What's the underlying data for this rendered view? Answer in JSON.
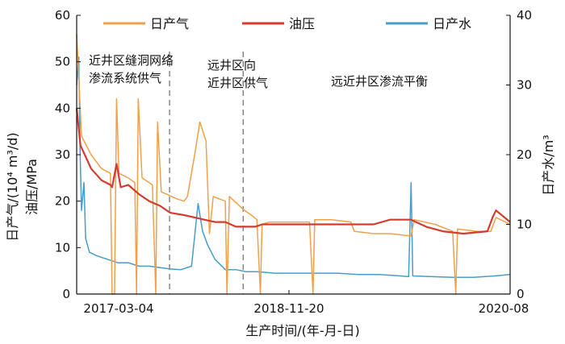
{
  "chart_data": {
    "type": "line",
    "xlabel": "生产时间/(年-月-日)",
    "ylabel_left": "日产气/(10⁴ m³/d)  油压/MPa",
    "ylabel_left_line1": "日产气/(10⁴ m³/d)",
    "ylabel_left_line2": "油压/MPa",
    "ylabel_right": "日产水/m³",
    "ylim_left": [
      0,
      60
    ],
    "ylim_right": [
      0,
      40
    ],
    "yticks_left": [
      "0",
      "10",
      "20",
      "30",
      "40",
      "50",
      "60"
    ],
    "yticks_right": [
      "0",
      "10",
      "20",
      "30",
      "40"
    ],
    "xticks": [
      "2017-03-04",
      "2018-11-20",
      "2020-08"
    ],
    "x_range": [
      "2017-03-04",
      "2020-08-15"
    ],
    "legend_position": "top",
    "annotations": [
      {
        "text": [
          "近井区缝洞网络",
          "渗流系统供气"
        ]
      },
      {
        "text": [
          "远井区向",
          "近井区供气"
        ]
      },
      {
        "text": [
          "远近井区渗流平衡"
        ]
      }
    ],
    "phase_boundaries": [
      "2017-11-29",
      "2018-07-01"
    ],
    "series": [
      {
        "name": "日产气",
        "axis": "left",
        "color": "#f0a04b",
        "points": [
          [
            "2017-03-04",
            56
          ],
          [
            "2017-03-18",
            34
          ],
          [
            "2017-04-15",
            30
          ],
          [
            "2017-05-15",
            27
          ],
          [
            "2017-06-10",
            26
          ],
          [
            "2017-06-15",
            0
          ],
          [
            "2017-06-22",
            0
          ],
          [
            "2017-06-28",
            42
          ],
          [
            "2017-07-05",
            26
          ],
          [
            "2017-08-01",
            25
          ],
          [
            "2017-08-20",
            24
          ],
          [
            "2017-08-25",
            0
          ],
          [
            "2017-08-30",
            42
          ],
          [
            "2017-09-10",
            25
          ],
          [
            "2017-10-10",
            23.5
          ],
          [
            "2017-10-20",
            0
          ],
          [
            "2017-10-25",
            37
          ],
          [
            "2017-11-05",
            22
          ],
          [
            "2017-12-20",
            20.5
          ],
          [
            "2018-01-10",
            20
          ],
          [
            "2018-01-20",
            21
          ],
          [
            "2018-02-10",
            30
          ],
          [
            "2018-02-25",
            37
          ],
          [
            "2018-03-15",
            33
          ],
          [
            "2018-03-25",
            13
          ],
          [
            "2018-04-05",
            21
          ],
          [
            "2018-05-10",
            20
          ],
          [
            "2018-05-15",
            0
          ],
          [
            "2018-05-22",
            21
          ],
          [
            "2018-06-20",
            19
          ],
          [
            "2018-07-05",
            18
          ],
          [
            "2018-07-25",
            17
          ],
          [
            "2018-08-10",
            16
          ],
          [
            "2018-08-20",
            0
          ],
          [
            "2018-08-25",
            15
          ],
          [
            "2018-09-15",
            15.5
          ],
          [
            "2018-10-20",
            15.5
          ],
          [
            "2018-11-20",
            15.5
          ],
          [
            "2019-01-10",
            15.5
          ],
          [
            "2019-01-20",
            0
          ],
          [
            "2019-01-25",
            16
          ],
          [
            "2019-03-15",
            16
          ],
          [
            "2019-05-10",
            15.5
          ],
          [
            "2019-05-20",
            13.5
          ],
          [
            "2019-07-15",
            13
          ],
          [
            "2019-09-01",
            13
          ],
          [
            "2019-11-01",
            12.5
          ],
          [
            "2019-11-10",
            16
          ],
          [
            "2020-01-10",
            15
          ],
          [
            "2020-03-01",
            13.5
          ],
          [
            "2020-03-10",
            0
          ],
          [
            "2020-03-15",
            14
          ],
          [
            "2020-05-10",
            13.5
          ],
          [
            "2020-06-20",
            13.5
          ],
          [
            "2020-07-05",
            16.5
          ],
          [
            "2020-08-15",
            15
          ]
        ]
      },
      {
        "name": "油压",
        "axis": "left",
        "color": "#d43b2f",
        "points": [
          [
            "2017-03-04",
            40
          ],
          [
            "2017-03-15",
            32
          ],
          [
            "2017-04-15",
            27
          ],
          [
            "2017-05-15",
            24.5
          ],
          [
            "2017-06-10",
            23.5
          ],
          [
            "2017-06-15",
            23
          ],
          [
            "2017-06-28",
            28
          ],
          [
            "2017-07-10",
            23
          ],
          [
            "2017-08-01",
            23.5
          ],
          [
            "2017-09-01",
            21.5
          ],
          [
            "2017-10-01",
            20
          ],
          [
            "2017-11-01",
            19
          ],
          [
            "2017-12-01",
            17.5
          ],
          [
            "2018-01-10",
            17
          ],
          [
            "2018-02-10",
            16.5
          ],
          [
            "2018-03-10",
            16
          ],
          [
            "2018-04-10",
            15.5
          ],
          [
            "2018-05-10",
            15.5
          ],
          [
            "2018-06-10",
            14.5
          ],
          [
            "2018-07-10",
            14.5
          ],
          [
            "2018-08-05",
            14.5
          ],
          [
            "2018-08-25",
            15
          ],
          [
            "2018-11-20",
            15
          ],
          [
            "2019-03-01",
            15
          ],
          [
            "2019-06-01",
            15
          ],
          [
            "2019-07-15",
            15
          ],
          [
            "2019-09-01",
            16
          ],
          [
            "2019-11-01",
            16
          ],
          [
            "2019-12-15",
            14.5
          ],
          [
            "2020-02-01",
            13.5
          ],
          [
            "2020-04-01",
            13
          ],
          [
            "2020-06-10",
            13.5
          ],
          [
            "2020-06-25",
            16.5
          ],
          [
            "2020-07-05",
            18
          ],
          [
            "2020-08-15",
            15.5
          ]
        ]
      },
      {
        "name": "日产水",
        "axis": "right",
        "color": "#4a9cc9",
        "points": [
          [
            "2017-03-04",
            30
          ],
          [
            "2017-03-10",
            34
          ],
          [
            "2017-03-14",
            20
          ],
          [
            "2017-03-18",
            12
          ],
          [
            "2017-03-25",
            16
          ],
          [
            "2017-03-30",
            8
          ],
          [
            "2017-04-10",
            6
          ],
          [
            "2017-05-01",
            5.5
          ],
          [
            "2017-06-01",
            5
          ],
          [
            "2017-07-01",
            4.5
          ],
          [
            "2017-08-01",
            4.5
          ],
          [
            "2017-09-01",
            4
          ],
          [
            "2017-10-01",
            4
          ],
          [
            "2017-11-01",
            3.8
          ],
          [
            "2017-12-01",
            3.6
          ],
          [
            "2018-01-01",
            3.5
          ],
          [
            "2018-02-01",
            4
          ],
          [
            "2018-02-20",
            13
          ],
          [
            "2018-03-05",
            9
          ],
          [
            "2018-03-20",
            7
          ],
          [
            "2018-04-10",
            5
          ],
          [
            "2018-05-10",
            3.5
          ],
          [
            "2018-06-10",
            3.5
          ],
          [
            "2018-07-10",
            3.2
          ],
          [
            "2018-08-10",
            3.2
          ],
          [
            "2018-10-01",
            3
          ],
          [
            "2018-12-01",
            3
          ],
          [
            "2019-02-01",
            3
          ],
          [
            "2019-04-01",
            3
          ],
          [
            "2019-06-01",
            2.8
          ],
          [
            "2019-08-01",
            2.8
          ],
          [
            "2019-10-01",
            2.6
          ],
          [
            "2019-10-25",
            2.5
          ],
          [
            "2019-11-01",
            16
          ],
          [
            "2019-11-06",
            2.6
          ],
          [
            "2020-01-01",
            2.5
          ],
          [
            "2020-03-01",
            2.4
          ],
          [
            "2020-05-01",
            2.4
          ],
          [
            "2020-07-01",
            2.6
          ],
          [
            "2020-08-15",
            2.8
          ]
        ]
      }
    ]
  }
}
